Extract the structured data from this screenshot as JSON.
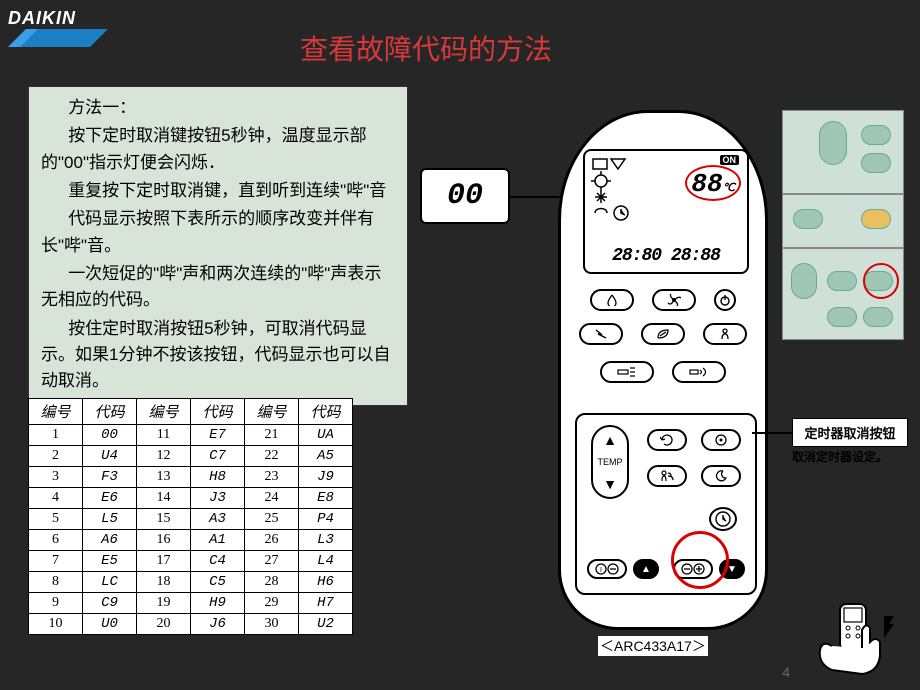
{
  "logo": {
    "brand": "DAIKIN",
    "bg": "#262626",
    "text_color": "#ffffff",
    "swoosh_color": "#1a7fc4"
  },
  "title": {
    "text": "查看故障代码的方法",
    "color": "#d93838",
    "fontsize": 28
  },
  "method": {
    "bg": "#d7e4d7",
    "lines": [
      "方法一：",
      "按下定时取消键按钮5秒钟，温度显示部的\"00\"指示灯便会闪烁．",
      "重复按下定时取消键，直到听到连续\"哔\"音",
      "代码显示按照下表所示的顺序改变并伴有长\"哔\"音。",
      "一次短促的\"哔\"声和两次连续的\"哔\"声表示无相应的代码。",
      "按住定时取消按钮5秒钟，可取消代码显示。如果1分钟不按该按钮，代码显示也可以自动取消。"
    ]
  },
  "table": {
    "headers": [
      "编号",
      "代码",
      "编号",
      "代码",
      "编号",
      "代码"
    ],
    "rows": [
      [
        "1",
        "00",
        "11",
        "E7",
        "21",
        "UA"
      ],
      [
        "2",
        "U4",
        "12",
        "C7",
        "22",
        "A5"
      ],
      [
        "3",
        "F3",
        "13",
        "H8",
        "23",
        "J9"
      ],
      [
        "4",
        "E6",
        "14",
        "J3",
        "24",
        "E8"
      ],
      [
        "5",
        "L5",
        "15",
        "A3",
        "25",
        "P4"
      ],
      [
        "6",
        "A6",
        "16",
        "A1",
        "26",
        "L3"
      ],
      [
        "7",
        "E5",
        "17",
        "C4",
        "27",
        "L4"
      ],
      [
        "8",
        "LC",
        "18",
        "C5",
        "28",
        "H6"
      ],
      [
        "9",
        "C9",
        "19",
        "H9",
        "29",
        "H7"
      ],
      [
        "10",
        "U0",
        "20",
        "J6",
        "30",
        "U2"
      ]
    ]
  },
  "zoom_display": {
    "value": "00"
  },
  "remote": {
    "model": "＜ARC433A17＞",
    "lcd": {
      "on": "ON",
      "temp": "88",
      "unit": "℃",
      "time": "28:80  28:88",
      "circle_color": "#d00000"
    },
    "timer_circle_color": "#d00000"
  },
  "callout": {
    "title": "定时器取消按钮",
    "sub": "取消定时器设定。"
  },
  "photo_panel": {
    "bg": "#cfe0d8",
    "btn_color": "#9fc7b3",
    "circle_color": "#d00000"
  },
  "page": "4"
}
